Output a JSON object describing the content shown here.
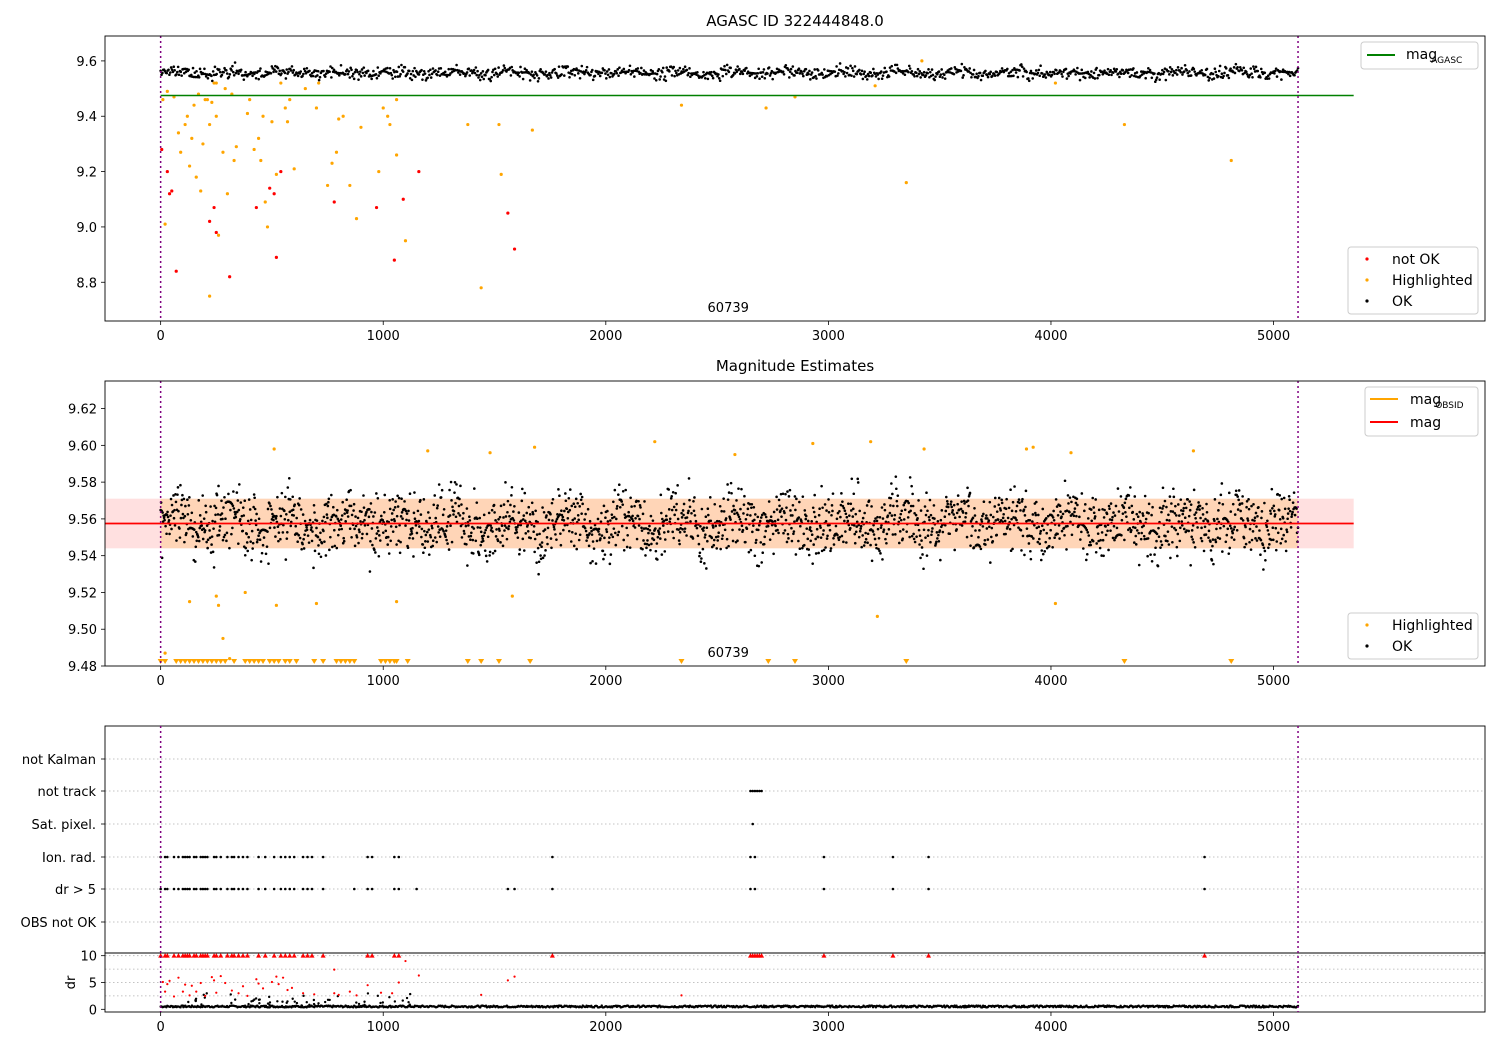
{
  "chart_data": [
    {
      "type": "scatter",
      "title": "AGASC ID 322444848.0",
      "xlim": [
        -250,
        5950
      ],
      "ylim": [
        8.66,
        9.69
      ],
      "xticks": [
        0,
        1000,
        2000,
        3000,
        4000,
        5000
      ],
      "yticks": [
        8.8,
        9.0,
        9.2,
        9.4,
        9.6
      ],
      "obsid_label": "60739",
      "obsid_label_x": 2550,
      "vlines": [
        0,
        5110
      ],
      "hline": {
        "name": "mag",
        "subscript": "AGASC",
        "y": 9.475,
        "x_range": [
          0,
          5360
        ],
        "color": "#008000"
      },
      "ok_band": {
        "x_range": [
          0,
          5110
        ],
        "center": 9.557,
        "spread": 0.015
      },
      "legend_top": [
        {
          "name": "mag",
          "subscript": "AGASC",
          "color": "#008000"
        }
      ],
      "legend_bottom": [
        {
          "name": "not OK",
          "color": "#ff0000"
        },
        {
          "name": "Highlighted",
          "color": "#ffa500"
        },
        {
          "name": "OK",
          "color": "#000000"
        }
      ],
      "series": [
        {
          "name": "Highlighted",
          "color": "#ffa500",
          "points": [
            [
              10,
              9.46
            ],
            [
              20,
              9.01
            ],
            [
              30,
              9.49
            ],
            [
              60,
              9.47
            ],
            [
              80,
              9.34
            ],
            [
              90,
              9.27
            ],
            [
              110,
              9.37
            ],
            [
              120,
              9.4
            ],
            [
              130,
              9.22
            ],
            [
              140,
              9.32
            ],
            [
              150,
              9.44
            ],
            [
              160,
              9.18
            ],
            [
              170,
              9.48
            ],
            [
              180,
              9.13
            ],
            [
              190,
              9.3
            ],
            [
              200,
              9.46
            ],
            [
              210,
              9.46
            ],
            [
              220,
              9.37
            ],
            [
              230,
              9.45
            ],
            [
              240,
              9.52
            ],
            [
              250,
              9.4
            ],
            [
              260,
              8.97
            ],
            [
              280,
              9.27
            ],
            [
              290,
              9.5
            ],
            [
              300,
              9.12
            ],
            [
              320,
              9.48
            ],
            [
              330,
              9.24
            ],
            [
              340,
              9.29
            ],
            [
              390,
              9.41
            ],
            [
              400,
              9.46
            ],
            [
              420,
              9.28
            ],
            [
              440,
              9.32
            ],
            [
              450,
              9.24
            ],
            [
              460,
              9.4
            ],
            [
              470,
              9.09
            ],
            [
              480,
              9.0
            ],
            [
              500,
              9.38
            ],
            [
              520,
              9.19
            ],
            [
              540,
              9.52
            ],
            [
              560,
              9.43
            ],
            [
              570,
              9.38
            ],
            [
              580,
              9.46
            ],
            [
              600,
              9.21
            ],
            [
              650,
              9.5
            ],
            [
              700,
              9.43
            ],
            [
              710,
              9.52
            ],
            [
              750,
              9.15
            ],
            [
              770,
              9.23
            ],
            [
              790,
              9.27
            ],
            [
              800,
              9.39
            ],
            [
              820,
              9.4
            ],
            [
              850,
              9.15
            ],
            [
              880,
              9.03
            ],
            [
              900,
              9.36
            ],
            [
              980,
              9.2
            ],
            [
              1000,
              9.43
            ],
            [
              1020,
              9.4
            ],
            [
              1030,
              9.37
            ],
            [
              1060,
              9.46
            ],
            [
              1100,
              8.95
            ],
            [
              1380,
              9.37
            ],
            [
              1440,
              8.78
            ],
            [
              1520,
              9.37
            ],
            [
              1530,
              9.19
            ],
            [
              1670,
              9.35
            ],
            [
              2340,
              9.44
            ],
            [
              2720,
              9.43
            ],
            [
              2850,
              9.47
            ],
            [
              3350,
              9.16
            ],
            [
              3420,
              9.6
            ],
            [
              4020,
              9.52
            ],
            [
              4330,
              9.37
            ],
            [
              4810,
              9.24
            ],
            [
              220,
              8.75
            ],
            [
              250,
              9.52
            ],
            [
              1060,
              9.26
            ],
            [
              3210,
              9.51
            ]
          ]
        },
        {
          "name": "not OK",
          "color": "#ff0000",
          "points": [
            [
              5,
              9.28
            ],
            [
              30,
              9.2
            ],
            [
              40,
              9.12
            ],
            [
              50,
              9.13
            ],
            [
              70,
              8.84
            ],
            [
              220,
              9.02
            ],
            [
              240,
              9.07
            ],
            [
              250,
              8.98
            ],
            [
              310,
              8.82
            ],
            [
              430,
              9.07
            ],
            [
              490,
              9.14
            ],
            [
              510,
              9.12
            ],
            [
              520,
              8.89
            ],
            [
              540,
              9.2
            ],
            [
              780,
              9.09
            ],
            [
              970,
              9.07
            ],
            [
              1050,
              8.88
            ],
            [
              1090,
              9.1
            ],
            [
              1160,
              9.2
            ],
            [
              1560,
              9.05
            ],
            [
              1590,
              8.92
            ]
          ]
        }
      ]
    },
    {
      "type": "scatter",
      "title": "Magnitude Estimates",
      "xlim": [
        -250,
        5950
      ],
      "ylim": [
        9.48,
        9.635
      ],
      "xticks": [
        0,
        1000,
        2000,
        3000,
        4000,
        5000
      ],
      "yticks": [
        9.48,
        9.5,
        9.52,
        9.54,
        9.56,
        9.58,
        9.6,
        9.62
      ],
      "obsid_label": "60739",
      "obsid_label_x": 2550,
      "vlines": [
        0,
        5110
      ],
      "mag_line": {
        "y": 9.5575,
        "x_range": [
          -250,
          5360
        ],
        "color": "#ff0000"
      },
      "mag_band": {
        "y_range": [
          9.544,
          9.571
        ],
        "x_range": [
          -250,
          5360
        ]
      },
      "obsid_band": {
        "y_range": [
          9.544,
          9.571
        ],
        "x_range": [
          0,
          5110
        ]
      },
      "ok_band": {
        "x_range": [
          0,
          5110
        ],
        "center": 9.5575,
        "spread": 0.012
      },
      "legend_top": [
        {
          "name": "mag",
          "subscript": "OBSID",
          "color": "#ffa500"
        },
        {
          "name": "mag",
          "subscript": "",
          "color": "#ff0000"
        }
      ],
      "legend_bottom": [
        {
          "name": "Highlighted",
          "color": "#ffa500"
        },
        {
          "name": "OK",
          "color": "#000000"
        }
      ],
      "series": [
        {
          "name": "Highlighted",
          "color": "#ffa500",
          "points": [
            [
              20,
              9.487
            ],
            [
              130,
              9.515
            ],
            [
              250,
              9.518
            ],
            [
              260,
              9.513
            ],
            [
              280,
              9.495
            ],
            [
              310,
              9.484
            ],
            [
              380,
              9.52
            ],
            [
              510,
              9.598
            ],
            [
              520,
              9.513
            ],
            [
              700,
              9.514
            ],
            [
              1060,
              9.515
            ],
            [
              1200,
              9.597
            ],
            [
              1480,
              9.596
            ],
            [
              1580,
              9.518
            ],
            [
              1680,
              9.599
            ],
            [
              2220,
              9.602
            ],
            [
              2580,
              9.595
            ],
            [
              2930,
              9.601
            ],
            [
              3190,
              9.602
            ],
            [
              3220,
              9.507
            ],
            [
              3430,
              9.598
            ],
            [
              3890,
              9.598
            ],
            [
              3920,
              9.599
            ],
            [
              4020,
              9.514
            ],
            [
              4090,
              9.596
            ],
            [
              4640,
              9.597
            ]
          ]
        }
      ],
      "below_range_x": [
        0,
        20,
        70,
        90,
        110,
        130,
        150,
        170,
        190,
        210,
        230,
        250,
        270,
        290,
        330,
        380,
        400,
        420,
        440,
        460,
        490,
        510,
        530,
        560,
        580,
        610,
        690,
        730,
        790,
        810,
        830,
        850,
        870,
        990,
        1010,
        1030,
        1050,
        1060,
        1110,
        1380,
        1440,
        1520,
        1660,
        2340,
        2730,
        2850,
        3350,
        4330,
        4810
      ]
    },
    {
      "type": "scatter",
      "title": "",
      "xlim": [
        -250,
        5950
      ],
      "xticks": [
        0,
        1000,
        2000,
        3000,
        4000,
        5000
      ],
      "vlines": [
        0,
        5110
      ],
      "flag_rows": [
        "not Kalman",
        "not track",
        "Sat. pixel.",
        "Ion. rad.",
        "dr > 5",
        "OBS not OK"
      ],
      "flags": {
        "not track": [
          2650,
          2660,
          2670,
          2680,
          2690,
          2700
        ],
        "Sat. pixel.": [
          2660
        ],
        "Ion. rad.": [
          0,
          20,
          30,
          60,
          80,
          100,
          110,
          120,
          130,
          150,
          160,
          180,
          190,
          200,
          210,
          240,
          250,
          270,
          300,
          320,
          330,
          350,
          370,
          390,
          440,
          470,
          510,
          540,
          560,
          580,
          600,
          640,
          660,
          680,
          730,
          930,
          950,
          1050,
          1070,
          1760,
          2650,
          2670,
          2980,
          3290,
          3450,
          4690
        ],
        "dr > 5": [
          0,
          20,
          30,
          60,
          80,
          100,
          110,
          120,
          130,
          150,
          160,
          180,
          190,
          200,
          210,
          240,
          250,
          270,
          300,
          320,
          330,
          350,
          370,
          390,
          440,
          470,
          510,
          540,
          560,
          580,
          600,
          640,
          660,
          680,
          730,
          870,
          930,
          950,
          1050,
          1070,
          1150,
          1560,
          1590,
          1760,
          2650,
          2670,
          2980,
          3290,
          3450,
          4690
        ]
      },
      "dr": {
        "ylabel": "dr",
        "ylim": [
          -0.5,
          10.5
        ],
        "yticks": [
          0,
          5,
          10
        ],
        "capped": [
          0,
          20,
          30,
          60,
          80,
          100,
          110,
          120,
          130,
          150,
          160,
          180,
          190,
          200,
          210,
          240,
          250,
          270,
          300,
          320,
          330,
          350,
          370,
          390,
          440,
          470,
          510,
          540,
          560,
          580,
          600,
          640,
          660,
          680,
          730,
          930,
          950,
          1050,
          1070,
          1760,
          2650,
          2660,
          2670,
          2680,
          2690,
          2700,
          2980,
          3290,
          3450,
          4690
        ],
        "mid": [
          [
            10,
            5.1
          ],
          [
            20,
            3.3
          ],
          [
            30,
            4.7
          ],
          [
            40,
            5.3
          ],
          [
            60,
            2.4
          ],
          [
            80,
            5.9
          ],
          [
            100,
            3.3
          ],
          [
            110,
            4.6
          ],
          [
            130,
            2.6
          ],
          [
            140,
            4.4
          ],
          [
            160,
            3.3
          ],
          [
            180,
            4.9
          ],
          [
            200,
            2.5
          ],
          [
            230,
            6.0
          ],
          [
            240,
            5.4
          ],
          [
            250,
            3.1
          ],
          [
            270,
            6.2
          ],
          [
            290,
            4.9
          ],
          [
            320,
            3.5
          ],
          [
            350,
            3.0
          ],
          [
            370,
            4.3
          ],
          [
            390,
            2.5
          ],
          [
            430,
            5.6
          ],
          [
            440,
            4.8
          ],
          [
            460,
            3.9
          ],
          [
            500,
            5.1
          ],
          [
            520,
            6.1
          ],
          [
            530,
            4.7
          ],
          [
            550,
            5.9
          ],
          [
            570,
            3.6
          ],
          [
            590,
            4.0
          ],
          [
            640,
            3.0
          ],
          [
            690,
            2.8
          ],
          [
            780,
            3.0
          ],
          [
            780,
            7.4
          ],
          [
            800,
            2.7
          ],
          [
            850,
            3.3
          ],
          [
            880,
            2.6
          ],
          [
            930,
            4.5
          ],
          [
            990,
            3.1
          ],
          [
            1040,
            3.0
          ],
          [
            1070,
            5.0
          ],
          [
            1100,
            9.0
          ],
          [
            1160,
            6.3
          ],
          [
            1560,
            5.4
          ],
          [
            1590,
            6.1
          ],
          [
            1440,
            2.7
          ],
          [
            2340,
            2.6
          ]
        ]
      }
    }
  ]
}
